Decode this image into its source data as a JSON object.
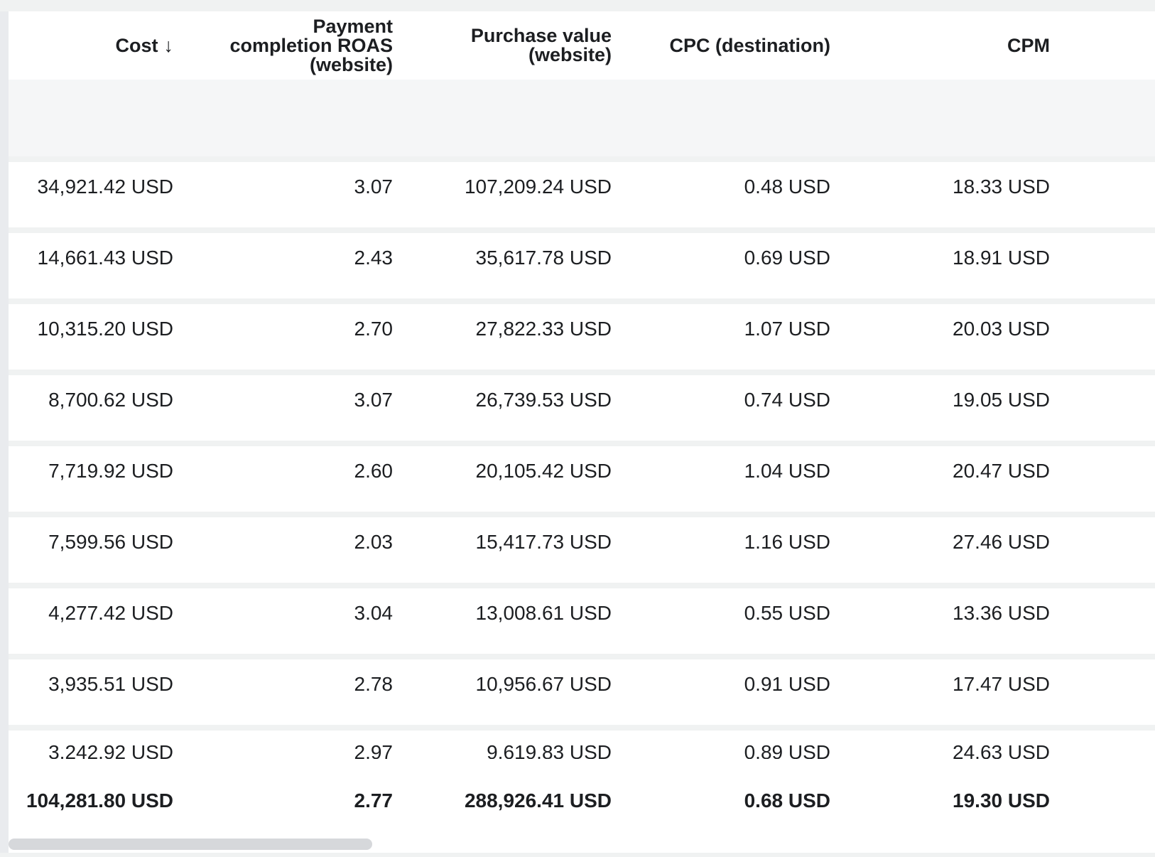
{
  "columns": [
    {
      "key": "cost",
      "lines": [
        "Cost"
      ],
      "sort_icon": "sort-descending-icon",
      "sort_glyph": "↓"
    },
    {
      "key": "roas",
      "lines": [
        "Payment",
        "completion ROAS",
        "(website)"
      ]
    },
    {
      "key": "purchase_value",
      "lines": [
        "Purchase value",
        "(website)"
      ]
    },
    {
      "key": "cpc",
      "lines": [
        "CPC (destination)"
      ]
    },
    {
      "key": "cpm",
      "lines": [
        "CPM"
      ]
    }
  ],
  "rows": [
    {
      "cost": "34,921.42 USD",
      "roas": "3.07",
      "purchase_value": "107,209.24 USD",
      "cpc": "0.48 USD",
      "cpm": "18.33 USD"
    },
    {
      "cost": "14,661.43 USD",
      "roas": "2.43",
      "purchase_value": "35,617.78 USD",
      "cpc": "0.69 USD",
      "cpm": "18.91 USD"
    },
    {
      "cost": "10,315.20 USD",
      "roas": "2.70",
      "purchase_value": "27,822.33 USD",
      "cpc": "1.07 USD",
      "cpm": "20.03 USD"
    },
    {
      "cost": "8,700.62 USD",
      "roas": "3.07",
      "purchase_value": "26,739.53 USD",
      "cpc": "0.74 USD",
      "cpm": "19.05 USD"
    },
    {
      "cost": "7,719.92 USD",
      "roas": "2.60",
      "purchase_value": "20,105.42 USD",
      "cpc": "1.04 USD",
      "cpm": "20.47 USD"
    },
    {
      "cost": "7,599.56 USD",
      "roas": "2.03",
      "purchase_value": "15,417.73 USD",
      "cpc": "1.16 USD",
      "cpm": "27.46 USD"
    },
    {
      "cost": "4,277.42 USD",
      "roas": "3.04",
      "purchase_value": "13,008.61 USD",
      "cpc": "0.55 USD",
      "cpm": "13.36 USD"
    },
    {
      "cost": "3,935.51 USD",
      "roas": "2.78",
      "purchase_value": "10,956.67 USD",
      "cpc": "0.91 USD",
      "cpm": "17.47 USD"
    },
    {
      "cost": "3,242.92 USD",
      "roas": "2.97",
      "purchase_value": "9,619.83 USD",
      "cpc": "0.89 USD",
      "cpm": "24.63 USD"
    }
  ],
  "totals": {
    "cost": "104,281.80 USD",
    "roas": "2.77",
    "purchase_value": "288,926.41 USD",
    "cpc": "0.68 USD",
    "cpm": "19.30 USD"
  }
}
